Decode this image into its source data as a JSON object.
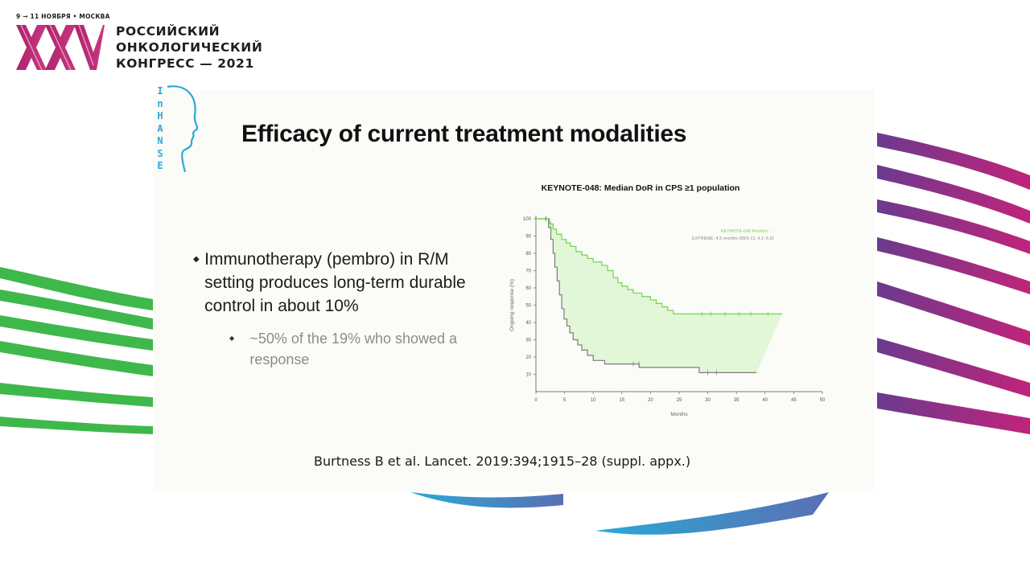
{
  "congress": {
    "dates": "9 → 11 НОЯБРЯ • МОСКВА",
    "logo_mark": "XXV",
    "name_lines": [
      "РОССИЙСКИЙ",
      "ОНКОЛОГИЧЕСКИЙ",
      "КОНГРЕСС — 2021"
    ]
  },
  "slide": {
    "logo_letters": [
      "I",
      "n",
      "H",
      "A",
      "N",
      "S",
      "E"
    ],
    "title": "Efficacy of current treatment modalities",
    "bullets": [
      {
        "text": "Immunotherapy (pembro) in R/M setting produces long-term durable control in about 10%",
        "sub": [
          {
            "text": "~50% of the 19% who showed a response"
          }
        ]
      }
    ],
    "citation": "Burtness B et al. Lancet. 2019:394;1915–28 (suppl. appx.)"
  },
  "colors": {
    "pembro": "#6fd64a",
    "extreme": "#7c7c7c",
    "fill": "#dff5d4",
    "brand_magenta": "#c0247a",
    "brand_green": "#39b54a",
    "brand_blue": "#2aa9d6"
  },
  "chart_data": {
    "type": "line",
    "title": "KEYNOTE-048: Median DoR in CPS ≥1 population",
    "xlabel": "Months",
    "ylabel": "Ongoing response (%)",
    "xlim": [
      0,
      50
    ],
    "ylim": [
      0,
      100
    ],
    "xticks": [
      0,
      5,
      10,
      15,
      20,
      25,
      30,
      35,
      40,
      45,
      50
    ],
    "yticks": [
      10,
      20,
      30,
      40,
      50,
      60,
      70,
      80,
      90,
      100
    ],
    "legend": [
      "KEYNOTE-048 Pembro: ...",
      "EXTREME: 4.5 months (95% CI, 4.1–5.6)"
    ],
    "legend_position": "top-right",
    "series": [
      {
        "name": "Pembro",
        "color": "#6fd64a",
        "points": [
          [
            0,
            100
          ],
          [
            2.4,
            100
          ],
          [
            2.4,
            97
          ],
          [
            3,
            97
          ],
          [
            3,
            94
          ],
          [
            3.6,
            94
          ],
          [
            3.6,
            91
          ],
          [
            4.5,
            91
          ],
          [
            4.5,
            88
          ],
          [
            5.3,
            88
          ],
          [
            5.3,
            86
          ],
          [
            6,
            86
          ],
          [
            6,
            84
          ],
          [
            7,
            84
          ],
          [
            7,
            81
          ],
          [
            8,
            81
          ],
          [
            8,
            79
          ],
          [
            9,
            79
          ],
          [
            9,
            77
          ],
          [
            10,
            77
          ],
          [
            10,
            75
          ],
          [
            11.5,
            75
          ],
          [
            11.5,
            73
          ],
          [
            12.5,
            73
          ],
          [
            12.5,
            70
          ],
          [
            13.5,
            70
          ],
          [
            13.5,
            66
          ],
          [
            14.3,
            66
          ],
          [
            14.3,
            63
          ],
          [
            15,
            63
          ],
          [
            15,
            61
          ],
          [
            16,
            61
          ],
          [
            16,
            59
          ],
          [
            17,
            59
          ],
          [
            17,
            57
          ],
          [
            18.5,
            57
          ],
          [
            18.5,
            55
          ],
          [
            20,
            55
          ],
          [
            20,
            53
          ],
          [
            21,
            53
          ],
          [
            21,
            51
          ],
          [
            22,
            51
          ],
          [
            22,
            49
          ],
          [
            23,
            49
          ],
          [
            23,
            47
          ],
          [
            24,
            47
          ],
          [
            24,
            45
          ],
          [
            43,
            45
          ]
        ],
        "censors": [
          [
            1.8,
            100
          ],
          [
            2.6,
            97
          ],
          [
            29,
            45
          ],
          [
            30.5,
            45
          ],
          [
            33,
            45
          ],
          [
            35.5,
            45
          ],
          [
            37.5,
            45
          ],
          [
            40.5,
            45
          ]
        ]
      },
      {
        "name": "EXTREME",
        "color": "#7c7c7c",
        "points": [
          [
            0,
            100
          ],
          [
            2.2,
            100
          ],
          [
            2.2,
            95
          ],
          [
            2.6,
            95
          ],
          [
            2.6,
            88
          ],
          [
            3.0,
            88
          ],
          [
            3.0,
            80
          ],
          [
            3.3,
            80
          ],
          [
            3.3,
            72
          ],
          [
            3.7,
            72
          ],
          [
            3.7,
            64
          ],
          [
            4.1,
            64
          ],
          [
            4.1,
            56
          ],
          [
            4.5,
            56
          ],
          [
            4.5,
            48
          ],
          [
            4.9,
            48
          ],
          [
            4.9,
            42
          ],
          [
            5.4,
            42
          ],
          [
            5.4,
            38
          ],
          [
            5.9,
            38
          ],
          [
            5.9,
            34
          ],
          [
            6.5,
            34
          ],
          [
            6.5,
            30
          ],
          [
            7.3,
            30
          ],
          [
            7.3,
            27
          ],
          [
            8,
            27
          ],
          [
            8,
            24
          ],
          [
            9,
            24
          ],
          [
            9,
            21
          ],
          [
            10,
            21
          ],
          [
            10,
            18
          ],
          [
            12,
            18
          ],
          [
            12,
            16
          ],
          [
            18,
            16
          ],
          [
            18,
            14
          ],
          [
            28.5,
            14
          ],
          [
            28.5,
            11
          ],
          [
            38.5,
            11
          ]
        ],
        "censors": [
          [
            1.7,
            100
          ],
          [
            17,
            16
          ],
          [
            18,
            16
          ],
          [
            30,
            11
          ],
          [
            31.5,
            11
          ]
        ]
      }
    ]
  }
}
